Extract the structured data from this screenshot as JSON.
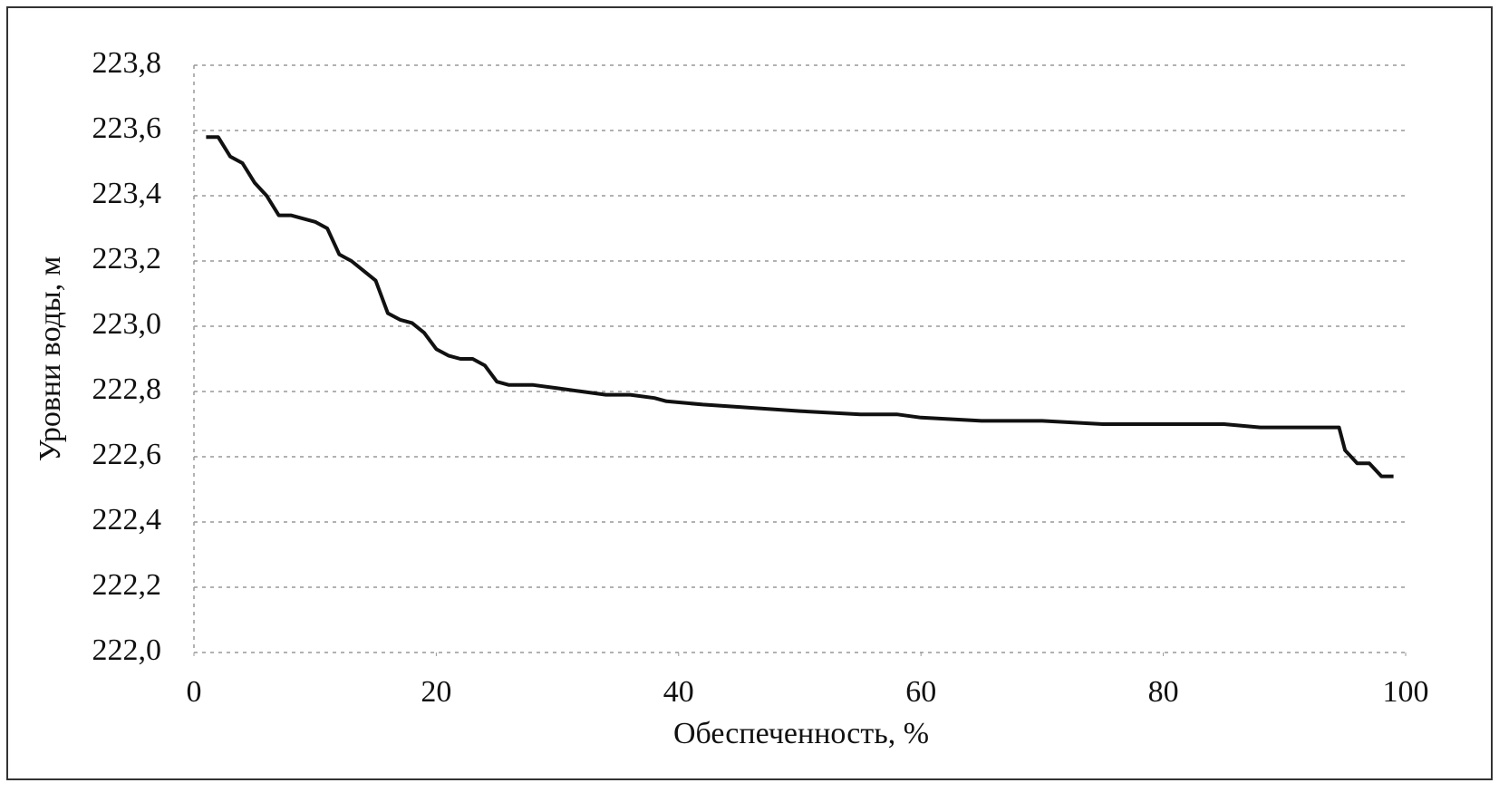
{
  "chart_data": {
    "type": "line",
    "x_label": "Обеспеченность, %",
    "y_label": "Уровни воды, м",
    "xlim": [
      0,
      100
    ],
    "xticks": [
      0,
      20,
      40,
      60,
      80,
      100
    ],
    "ylim": [
      222,
      223.8
    ],
    "yticks": [
      {
        "value": 222,
        "label": "222,0"
      },
      {
        "value": 222.2,
        "label": "222,2"
      },
      {
        "value": 222.4,
        "label": "222,4"
      },
      {
        "value": 222.6,
        "label": "222,6"
      },
      {
        "value": 222.8,
        "label": "222,8"
      },
      {
        "value": 223,
        "label": "223,0"
      },
      {
        "value": 223.2,
        "label": "223,2"
      },
      {
        "value": 223.4,
        "label": "223,4"
      },
      {
        "value": 223.6,
        "label": "223,6"
      },
      {
        "value": 223.8,
        "label": "223,8"
      }
    ],
    "grid": true,
    "color": "#111111",
    "x": [
      1,
      2,
      3,
      4,
      5,
      6,
      7,
      8,
      9,
      10,
      11,
      12,
      13,
      14,
      15,
      16,
      17,
      18,
      19,
      20,
      21,
      22,
      23,
      24,
      25,
      26,
      28,
      30,
      32,
      34,
      36,
      38,
      39,
      42,
      46,
      50,
      55,
      58,
      60,
      65,
      70,
      75,
      80,
      85,
      88,
      90,
      93,
      94.5,
      95,
      96,
      97,
      98,
      99
    ],
    "values": [
      223.58,
      223.58,
      223.52,
      223.5,
      223.44,
      223.4,
      223.34,
      223.34,
      223.33,
      223.32,
      223.3,
      223.22,
      223.2,
      223.17,
      223.14,
      223.04,
      223.02,
      223.01,
      222.98,
      222.93,
      222.91,
      222.9,
      222.9,
      222.88,
      222.83,
      222.82,
      222.82,
      222.81,
      222.8,
      222.79,
      222.79,
      222.78,
      222.77,
      222.76,
      222.75,
      222.74,
      222.73,
      222.73,
      222.72,
      222.71,
      222.71,
      222.7,
      222.7,
      222.7,
      222.69,
      222.69,
      222.69,
      222.69,
      222.62,
      222.58,
      222.58,
      222.54,
      222.54
    ]
  }
}
